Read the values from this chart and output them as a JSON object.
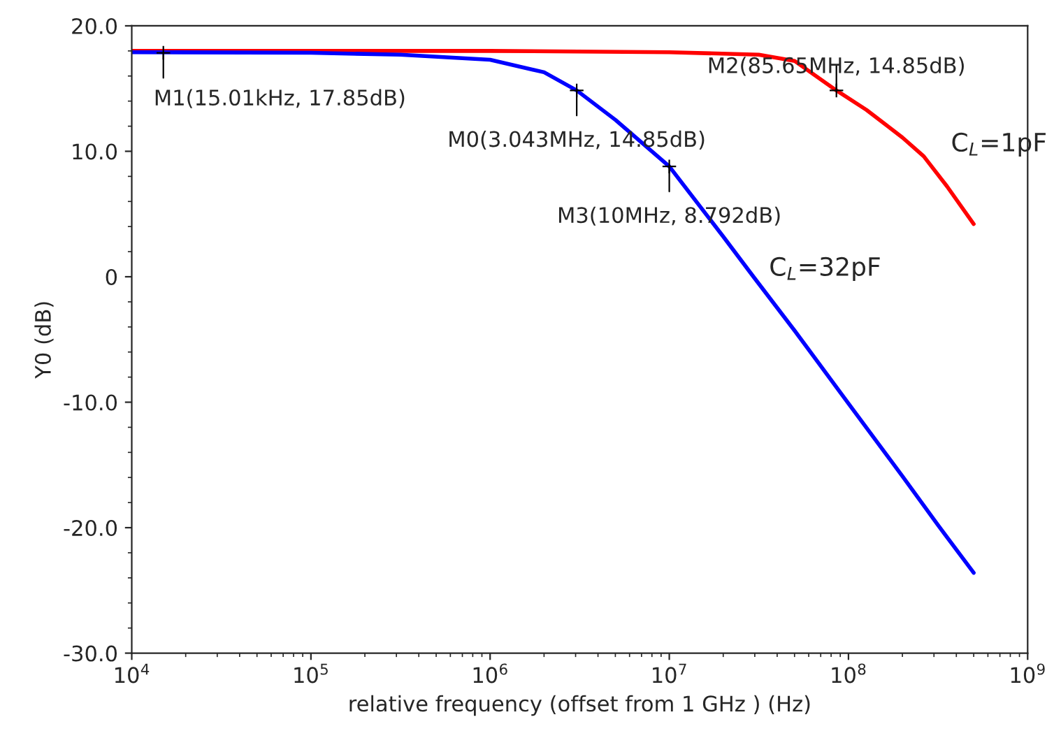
{
  "chart_data": {
    "type": "line",
    "xlabel": "relative frequency (offset from 1 GHz ) (Hz)",
    "ylabel": "Y0 (dB)",
    "log": "x",
    "xlim": [
      10000,
      1000000000
    ],
    "ylim": [
      -30,
      20
    ],
    "xticks": [
      {
        "value": 10000,
        "label": "10$^{4}$"
      },
      {
        "value": 100000,
        "label": "10$^{5}$"
      },
      {
        "value": 1000000,
        "label": "10$^{6}$"
      },
      {
        "value": 10000000,
        "label": "10$^{7}$"
      },
      {
        "value": 100000000,
        "label": "10$^{8}$"
      },
      {
        "value": 1000000000,
        "label": "10$^{9}$"
      }
    ],
    "yticks": [
      {
        "value": -30,
        "label": "-30.0"
      },
      {
        "value": -20,
        "label": "-20.0"
      },
      {
        "value": -10,
        "label": "-10.0"
      },
      0,
      {
        "value": 10,
        "label": "10.0"
      },
      {
        "value": 20,
        "label": "20.0"
      }
    ],
    "grid": false,
    "legend": false,
    "line_style": "solid",
    "marker": "none",
    "series": [
      {
        "color": "#ff0000",
        "x": [
          10000,
          100000,
          1000000,
          10000000,
          31600000,
          50100000,
          85650000,
          126000000,
          200000000,
          263000000,
          355000000,
          500000000
        ],
        "values": [
          18.0,
          18.0,
          18.0,
          17.9,
          17.7,
          17.2,
          14.85,
          13.3,
          11.1,
          9.6,
          7.2,
          4.2
        ]
      },
      {
        "color": "#0000ff",
        "x": [
          10000,
          100000,
          316000,
          1000000,
          2000000,
          3043000,
          5010000,
          10000000,
          20000000,
          29500000,
          50100000,
          100000000,
          200000000,
          316000000,
          500000000
        ],
        "values": [
          17.9,
          17.85,
          17.7,
          17.3,
          16.3,
          14.85,
          12.5,
          8.792,
          3.2,
          0,
          -4.3,
          -10.1,
          -15.9,
          -19.8,
          -23.6
        ]
      }
    ],
    "annotations": [
      {
        "text": "M1(15.01kHz, 17.85dB)",
        "x": 15010,
        "y": 17.85
      },
      {
        "text": "M2(85.65MHz, 14.85dB)",
        "x": 85650000,
        "y": 14.85
      },
      {
        "text": "M0(3.043MHz, 14.85dB)",
        "x": 3043000,
        "y": 14.85
      },
      {
        "text": "M3(10MHz, 8.792dB)",
        "x": 10000000,
        "y": 8.792
      },
      {
        "text": "C$_{L}$=1pF",
        "x": 263000000,
        "y": 9.6
      },
      {
        "text": "C$_{L}$=32pF",
        "x": 29500000,
        "y": 0
      }
    ]
  }
}
